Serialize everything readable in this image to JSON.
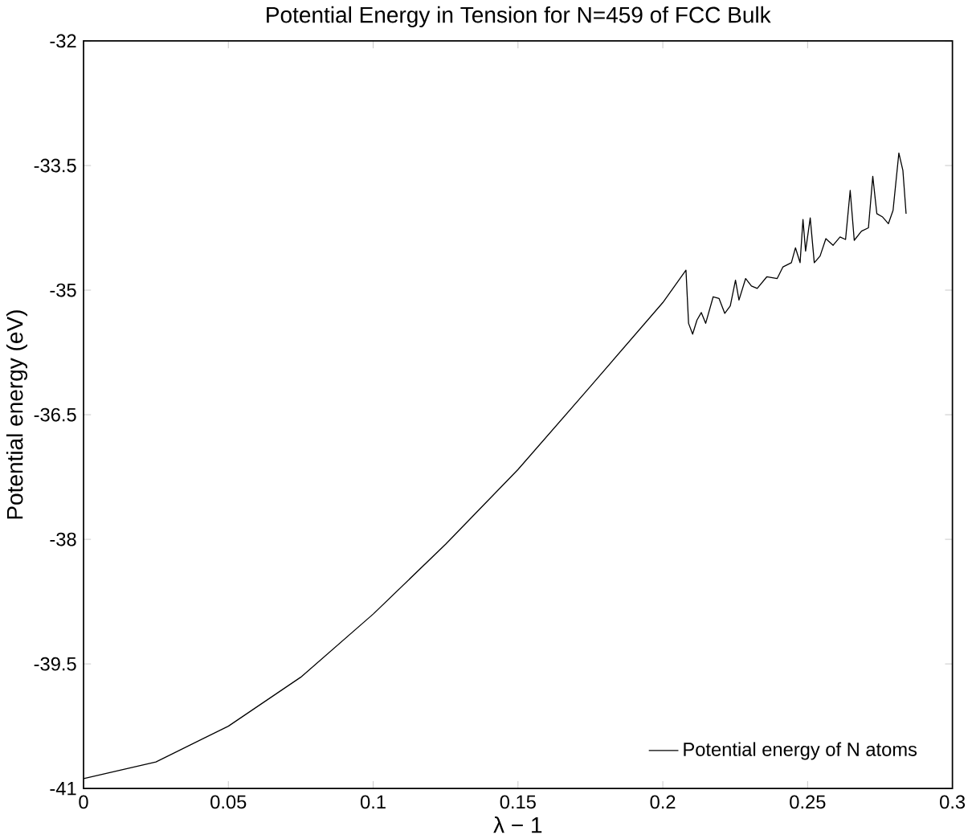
{
  "chart_data": {
    "type": "line",
    "title": "Potential Energy in Tension for N=459 of FCC Bulk",
    "xlabel": "λ − 1",
    "ylabel": "Potential energy (eV)",
    "x": [
      0,
      0.025,
      0.05,
      0.075,
      0.1,
      0.125,
      0.15,
      0.175,
      0.2,
      0.208,
      0.2089,
      0.2103,
      0.2118,
      0.2133,
      0.2148,
      0.2174,
      0.2194,
      0.2214,
      0.2233,
      0.2251,
      0.2263,
      0.2286,
      0.2306,
      0.2326,
      0.2359,
      0.2395,
      0.2415,
      0.2444,
      0.2458,
      0.2474,
      0.2484,
      0.2493,
      0.2509,
      0.2523,
      0.2543,
      0.2563,
      0.2588,
      0.2612,
      0.2631,
      0.2647,
      0.2661,
      0.2686,
      0.271,
      0.2725,
      0.2739,
      0.2759,
      0.2779,
      0.2795,
      0.2815,
      0.2829,
      0.284
    ],
    "series": [
      {
        "name": "Potential energy of N atoms",
        "color": "#000000",
        "values": [
          -40.88,
          -40.68,
          -40.25,
          -39.66,
          -38.9,
          -38.06,
          -37.16,
          -36.16,
          -35.15,
          -34.76,
          -35.4,
          -35.53,
          -35.36,
          -35.27,
          -35.4,
          -35.08,
          -35.1,
          -35.28,
          -35.19,
          -34.88,
          -35.12,
          -34.86,
          -34.95,
          -34.98,
          -34.84,
          -34.86,
          -34.72,
          -34.67,
          -34.49,
          -34.67,
          -34.15,
          -34.53,
          -34.13,
          -34.67,
          -34.59,
          -34.38,
          -34.46,
          -34.36,
          -34.39,
          -33.8,
          -34.4,
          -34.29,
          -34.25,
          -33.63,
          -34.08,
          -34.12,
          -34.2,
          -34.04,
          -33.35,
          -33.56,
          -34.08
        ]
      }
    ],
    "xlim": [
      0,
      0.3
    ],
    "ylim": [
      -41,
      -32
    ],
    "xticks": [
      0,
      0.05,
      0.1,
      0.15,
      0.2,
      0.25,
      0.3
    ],
    "yticks": [
      -41,
      -39.5,
      -38,
      -36.5,
      -35,
      -33.5,
      -32
    ],
    "grid": false,
    "legend": "bottom right",
    "marker": "none",
    "line_style": "solid"
  }
}
